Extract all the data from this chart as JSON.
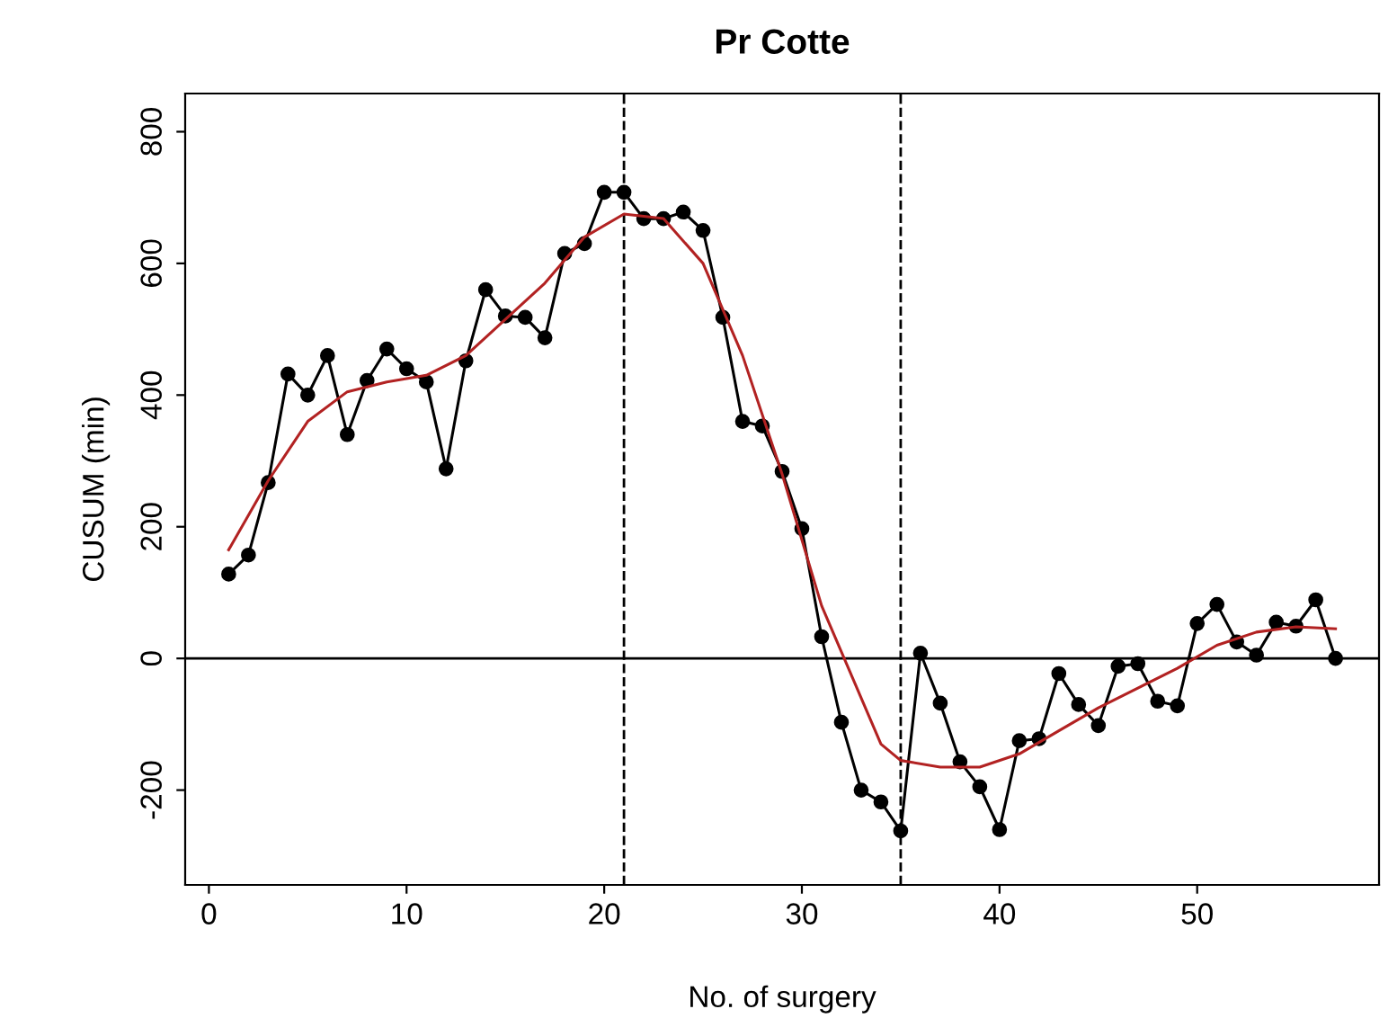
{
  "chart_data": {
    "type": "line",
    "title": "Pr Cotte",
    "xlabel": "No. of surgery",
    "ylabel": "CUSUM (min)",
    "xlim": [
      -1.2,
      59.2
    ],
    "ylim": [
      -344,
      858
    ],
    "xticks": [
      0,
      10,
      20,
      30,
      40,
      50
    ],
    "yticks": [
      -200,
      0,
      200,
      400,
      600,
      800
    ],
    "grid": false,
    "legend": false,
    "series": [
      {
        "color": "#000000",
        "marker": "circle",
        "x": [
          1,
          2,
          3,
          4,
          5,
          6,
          7,
          8,
          9,
          10,
          11,
          12,
          13,
          14,
          15,
          16,
          17,
          18,
          19,
          20,
          21,
          22,
          23,
          24,
          25,
          26,
          27,
          28,
          29,
          30,
          31,
          32,
          33,
          34,
          35,
          36,
          37,
          38,
          39,
          40,
          41,
          42,
          43,
          44,
          45,
          46,
          47,
          48,
          49,
          50,
          51,
          52,
          53,
          54,
          55,
          56,
          57
        ],
        "values": [
          128,
          157,
          267,
          432,
          400,
          460,
          340,
          422,
          470,
          440,
          420,
          288,
          452,
          560,
          520,
          518,
          487,
          615,
          630,
          708,
          708,
          668,
          668,
          678,
          650,
          518,
          360,
          353,
          284,
          197,
          33,
          -97,
          -200,
          -218,
          -262,
          8,
          -68,
          -157,
          -195,
          -260,
          -125,
          -122,
          -23,
          -70,
          -102,
          -12,
          -8,
          -65,
          -72,
          53,
          82,
          25,
          5,
          55,
          49,
          89,
          0
        ]
      },
      {
        "color": "#b22222",
        "marker": "none",
        "x": [
          1,
          3,
          5,
          7,
          9,
          11,
          13,
          15,
          17,
          19,
          21,
          23,
          25,
          27,
          29,
          31,
          33,
          34,
          35,
          37,
          39,
          41,
          43,
          45,
          47,
          49,
          51,
          53,
          55,
          57
        ],
        "values": [
          165,
          270,
          360,
          405,
          420,
          430,
          460,
          515,
          570,
          640,
          675,
          668,
          600,
          460,
          280,
          80,
          -60,
          -130,
          -155,
          -165,
          -165,
          -145,
          -110,
          -75,
          -45,
          -15,
          20,
          40,
          48,
          45
        ]
      }
    ],
    "ref_lines": [
      {
        "axis": "y",
        "value": 0,
        "color": "#000000",
        "line_style": "solid"
      },
      {
        "axis": "x",
        "value": 21,
        "color": "#000000",
        "line_style": "dashed"
      },
      {
        "axis": "x",
        "value": 35,
        "color": "#000000",
        "line_style": "dashed"
      }
    ]
  }
}
